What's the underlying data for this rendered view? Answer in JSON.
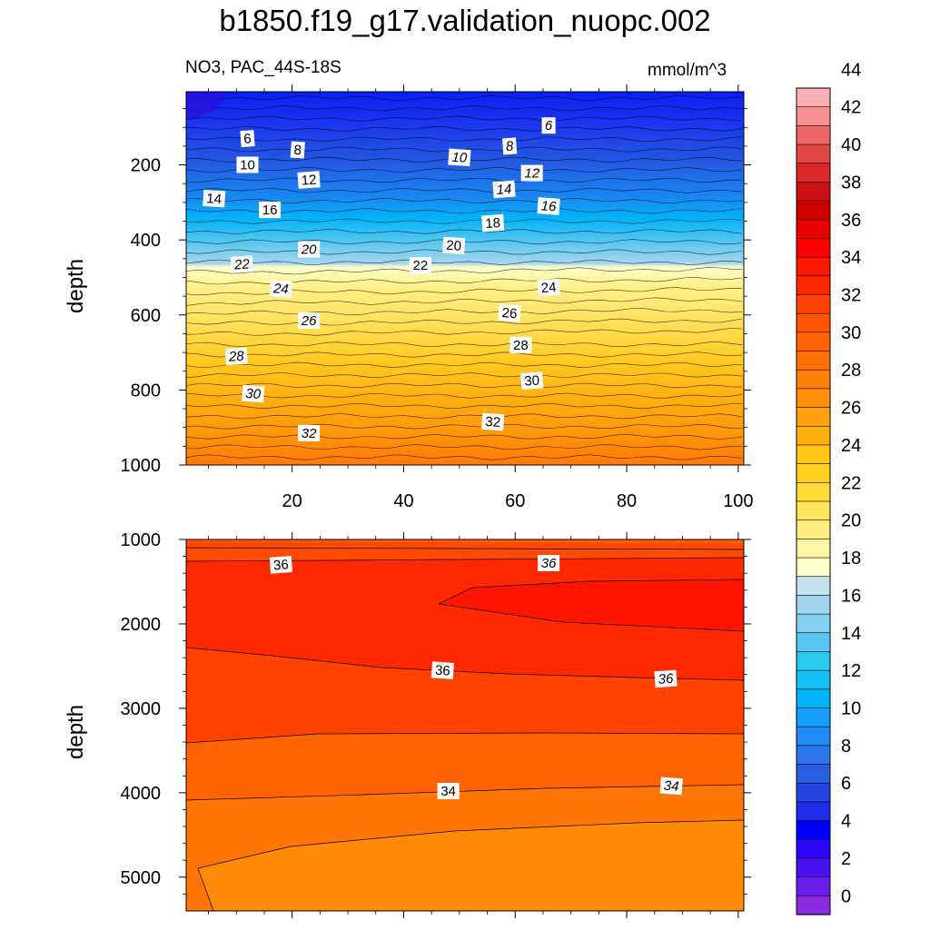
{
  "title": "b1850.f19_g17.validation_nuopc.002",
  "subtitle_left": "NO3, PAC_44S-18S",
  "units": "mmol/m^3",
  "chart_data": [
    {
      "type": "heatmap",
      "panel": "upper",
      "ylabel": "depth",
      "xlim": [
        1,
        101
      ],
      "ylim": [
        1000,
        5
      ],
      "y_reversed": true,
      "xticks": [
        20,
        40,
        60,
        80,
        100
      ],
      "yticks": [
        200,
        400,
        600,
        800,
        1000
      ],
      "depth_profile": [
        {
          "depth": 5,
          "value": 4
        },
        {
          "depth": 60,
          "value": 5
        },
        {
          "depth": 150,
          "value": 8
        },
        {
          "depth": 230,
          "value": 12
        },
        {
          "depth": 300,
          "value": 15
        },
        {
          "depth": 380,
          "value": 19
        },
        {
          "depth": 450,
          "value": 21.5
        },
        {
          "depth": 480,
          "value": 22
        },
        {
          "depth": 520,
          "value": 24
        },
        {
          "depth": 620,
          "value": 26.5
        },
        {
          "depth": 720,
          "value": 28.5
        },
        {
          "depth": 820,
          "value": 30
        },
        {
          "depth": 920,
          "value": 32
        },
        {
          "depth": 1000,
          "value": 33
        }
      ],
      "contour_labels": [
        {
          "text": "6",
          "x": 12,
          "depth": 130
        },
        {
          "text": "6",
          "x": 66,
          "depth": 95
        },
        {
          "text": "8",
          "x": 21,
          "depth": 160
        },
        {
          "text": "8",
          "x": 59,
          "depth": 150
        },
        {
          "text": "10",
          "x": 12,
          "depth": 200
        },
        {
          "text": "10",
          "x": 50,
          "depth": 180
        },
        {
          "text": "12",
          "x": 23,
          "depth": 240
        },
        {
          "text": "12",
          "x": 63,
          "depth": 222
        },
        {
          "text": "14",
          "x": 6,
          "depth": 290
        },
        {
          "text": "14",
          "x": 58,
          "depth": 265
        },
        {
          "text": "16",
          "x": 16,
          "depth": 320
        },
        {
          "text": "16",
          "x": 66,
          "depth": 310
        },
        {
          "text": "18",
          "x": 56,
          "depth": 355
        },
        {
          "text": "20",
          "x": 23,
          "depth": 425
        },
        {
          "text": "20",
          "x": 49,
          "depth": 415
        },
        {
          "text": "22",
          "x": 11,
          "depth": 465
        },
        {
          "text": "22",
          "x": 43,
          "depth": 468
        },
        {
          "text": "24",
          "x": 18,
          "depth": 530
        },
        {
          "text": "24",
          "x": 66,
          "depth": 527
        },
        {
          "text": "26",
          "x": 23,
          "depth": 615
        },
        {
          "text": "26",
          "x": 59,
          "depth": 595
        },
        {
          "text": "28",
          "x": 10,
          "depth": 710
        },
        {
          "text": "28",
          "x": 61,
          "depth": 680
        },
        {
          "text": "30",
          "x": 13,
          "depth": 810
        },
        {
          "text": "30",
          "x": 63,
          "depth": 775
        },
        {
          "text": "32",
          "x": 23,
          "depth": 915
        },
        {
          "text": "32",
          "x": 56,
          "depth": 885
        }
      ]
    },
    {
      "type": "heatmap",
      "panel": "lower",
      "ylabel": "depth",
      "xlim": [
        1,
        101
      ],
      "ylim": [
        5400,
        1000
      ],
      "y_reversed": true,
      "yticks": [
        1000,
        2000,
        3000,
        4000,
        5000
      ],
      "contour_labels": [
        {
          "text": "36",
          "x": 18,
          "depth": 1300
        },
        {
          "text": "36",
          "x": 66,
          "depth": 1280
        },
        {
          "text": "36",
          "x": 47,
          "depth": 2550
        },
        {
          "text": "36",
          "x": 87,
          "depth": 2650
        },
        {
          "text": "34",
          "x": 48,
          "depth": 3980
        },
        {
          "text": "34",
          "x": 88,
          "depth": 3920
        }
      ]
    }
  ],
  "colorbar": {
    "labels": [
      "0",
      "2",
      "4",
      "6",
      "8",
      "10",
      "12",
      "14",
      "16",
      "18",
      "20",
      "22",
      "24",
      "26",
      "28",
      "30",
      "32",
      "34",
      "36",
      "38",
      "40",
      "42",
      "44"
    ],
    "colors": [
      "#8a2be2",
      "#6a1ee8",
      "#4b10ef",
      "#2f06f7",
      "#0000ff",
      "#1e2eec",
      "#2347e0",
      "#2a5ee0",
      "#2a74ef",
      "#1f8bf5",
      "#159ff8",
      "#00b4fa",
      "#14c0f5",
      "#2bc8f0",
      "#55c7f2",
      "#85cff0",
      "#a3d5ee",
      "#c5e2f0",
      "#ffffc9",
      "#fff3a6",
      "#ffed80",
      "#ffe65a",
      "#ffdc37",
      "#ffd11e",
      "#ffc616",
      "#ffb20f",
      "#ffa00c",
      "#ff900a",
      "#ff8008",
      "#ff7006",
      "#ff6405",
      "#ff5403",
      "#ff4402",
      "#ff2800",
      "#ff1800",
      "#ff0000",
      "#e60000",
      "#d00000",
      "#cc1010",
      "#d82828",
      "#e24848",
      "#ee6666",
      "#f79090",
      "#fcb0b4"
    ]
  }
}
